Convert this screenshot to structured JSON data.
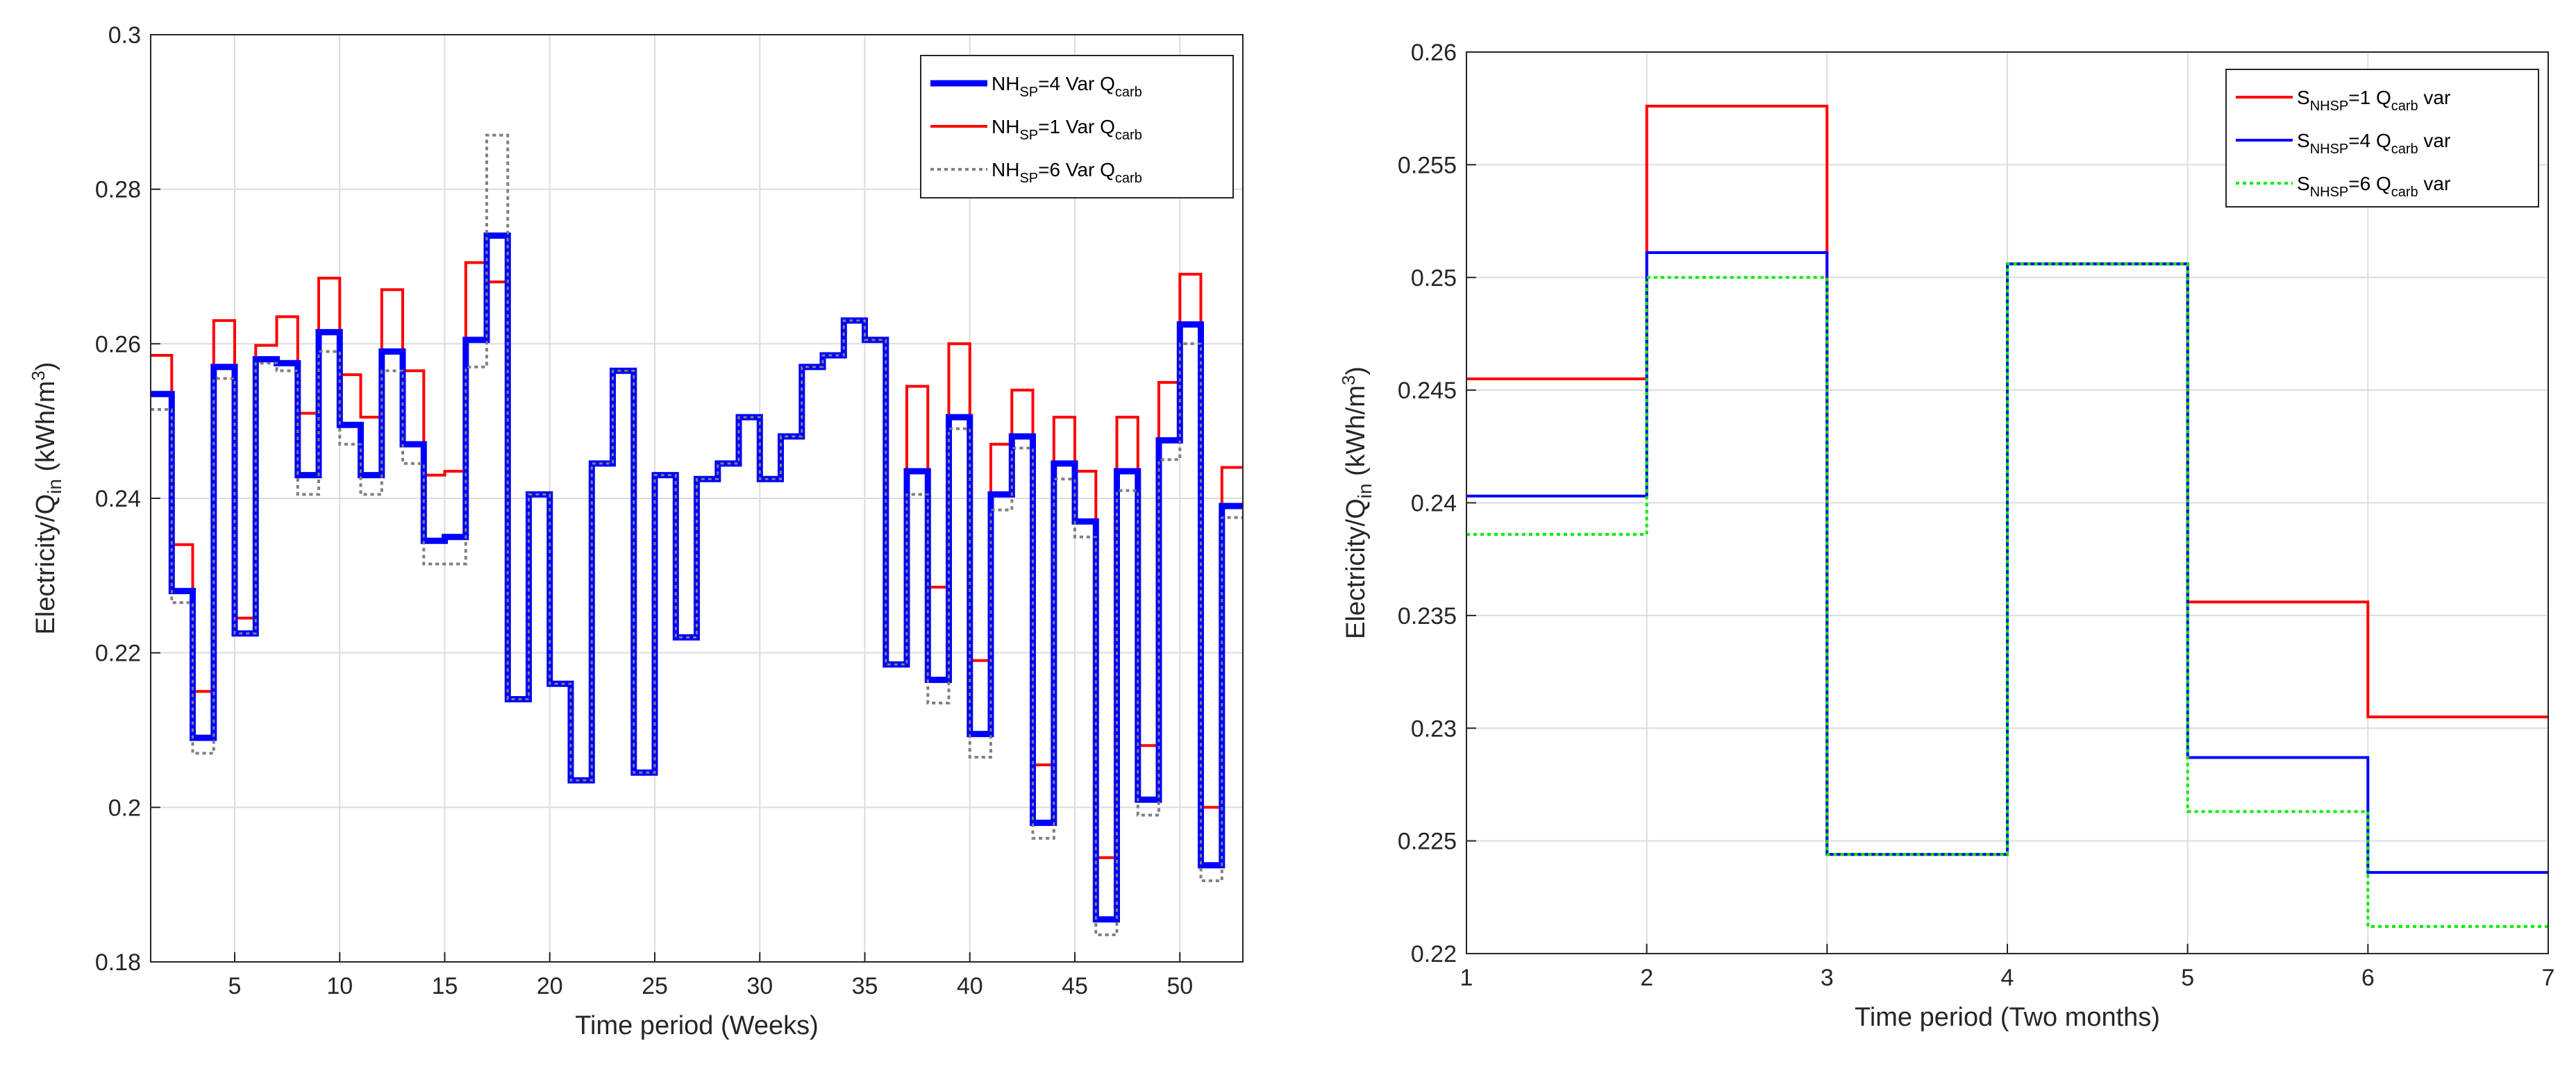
{
  "chart_data": [
    {
      "type": "line",
      "step": true,
      "title": "",
      "xlabel": "Time period (Weeks)",
      "ylabel_parts": [
        "Electricity/Q",
        "in",
        " (kWh/m",
        "3",
        ")"
      ],
      "xlim": [
        1,
        53
      ],
      "ylim": [
        0.18,
        0.3
      ],
      "xticks": [
        5,
        10,
        15,
        20,
        25,
        30,
        35,
        40,
        45,
        50
      ],
      "yticks": [
        0.18,
        0.2,
        0.22,
        0.24,
        0.26,
        0.28,
        0.3
      ],
      "ytick_labels": [
        "0.18",
        "0.2",
        "0.22",
        "0.24",
        "0.26",
        "0.28",
        "0.3"
      ],
      "grid": true,
      "legend_position": "top-right",
      "series": [
        {
          "name": "NH_SP=4 Var Q_carb",
          "label_parts": [
            "NH",
            "SP",
            "=4 Var Q",
            "carb"
          ],
          "color": "#0000ff",
          "style": "solid-thick",
          "values": [
            0.2535,
            0.228,
            0.209,
            0.257,
            0.2225,
            0.258,
            0.2575,
            0.243,
            0.2615,
            0.2495,
            0.243,
            0.259,
            0.247,
            0.2345,
            0.235,
            0.2605,
            0.274,
            0.214,
            0.2405,
            0.216,
            0.2035,
            0.2445,
            0.2565,
            0.2045,
            0.243,
            0.222,
            0.2425,
            0.2445,
            0.2505,
            0.2425,
            0.248,
            0.257,
            0.2585,
            0.263,
            0.2605,
            0.2185,
            0.2435,
            0.2165,
            0.2505,
            0.2095,
            0.2405,
            0.248,
            0.198,
            0.2445,
            0.237,
            0.1855,
            0.2435,
            0.201,
            0.2475,
            0.2625,
            0.1925,
            0.239
          ]
        },
        {
          "name": "NH_SP=1 Var Q_carb",
          "label_parts": [
            "NH",
            "SP",
            "=1 Var Q",
            "carb"
          ],
          "color": "#ff0000",
          "style": "solid",
          "values": [
            0.2585,
            0.234,
            0.215,
            0.263,
            0.2245,
            0.2598,
            0.2635,
            0.251,
            0.2685,
            0.256,
            0.2505,
            0.267,
            0.2565,
            0.243,
            0.2435,
            0.2705,
            0.268,
            0.214,
            0.2405,
            0.216,
            0.2035,
            0.2445,
            0.2565,
            0.2045,
            0.243,
            0.222,
            0.2425,
            0.2445,
            0.2505,
            0.2425,
            0.248,
            0.257,
            0.2585,
            0.263,
            0.2605,
            0.2185,
            0.2545,
            0.2285,
            0.26,
            0.219,
            0.247,
            0.254,
            0.2055,
            0.2505,
            0.2435,
            0.1935,
            0.2505,
            0.208,
            0.255,
            0.269,
            0.2,
            0.244
          ]
        },
        {
          "name": "NH_SP=6 Var Q_carb",
          "label_parts": [
            "NH",
            "SP",
            "=6 Var Q",
            "carb"
          ],
          "color": "#808080",
          "style": "dotted",
          "values": [
            0.2515,
            0.2265,
            0.207,
            0.2555,
            0.2225,
            0.2575,
            0.2565,
            0.2405,
            0.259,
            0.247,
            0.2405,
            0.2565,
            0.2445,
            0.2315,
            0.2315,
            0.257,
            0.287,
            0.214,
            0.2405,
            0.216,
            0.2035,
            0.2445,
            0.2565,
            0.2045,
            0.243,
            0.222,
            0.2425,
            0.2445,
            0.2505,
            0.2425,
            0.248,
            0.257,
            0.2585,
            0.263,
            0.2605,
            0.2185,
            0.2405,
            0.2135,
            0.249,
            0.2065,
            0.2385,
            0.2465,
            0.196,
            0.2425,
            0.235,
            0.1835,
            0.241,
            0.199,
            0.245,
            0.26,
            0.1905,
            0.2375
          ]
        }
      ]
    },
    {
      "type": "line",
      "step": true,
      "title": "",
      "xlabel": "Time period (Two months)",
      "ylabel_parts": [
        "Electricity/Q",
        "in",
        " (kWh/m",
        "3",
        ")"
      ],
      "xlim": [
        1,
        7
      ],
      "ylim": [
        0.22,
        0.26
      ],
      "xticks": [
        1,
        2,
        3,
        4,
        5,
        6,
        7
      ],
      "yticks": [
        0.22,
        0.225,
        0.23,
        0.235,
        0.24,
        0.245,
        0.25,
        0.255,
        0.26
      ],
      "ytick_labels": [
        "0.22",
        "0.225",
        "0.23",
        "0.235",
        "0.24",
        "0.245",
        "0.25",
        "0.255",
        "0.26"
      ],
      "grid": true,
      "legend_position": "top-right",
      "series": [
        {
          "name": "S_NHSP=1 Q_carb var",
          "label_parts": [
            "S",
            "NHSP",
            "=1 Q",
            "carb",
            " var"
          ],
          "color": "#ff0000",
          "style": "solid",
          "values": [
            0.2455,
            0.2576,
            0.2244,
            0.2506,
            0.2356,
            0.2305
          ]
        },
        {
          "name": "S_NHSP=4 Q_carb var",
          "label_parts": [
            "S",
            "NHSP",
            "=4 Q",
            "carb",
            " var"
          ],
          "color": "#0000ff",
          "style": "solid",
          "values": [
            0.2403,
            0.2511,
            0.2244,
            0.2506,
            0.2287,
            0.2236
          ]
        },
        {
          "name": "S_NHSP=6 Q_carb var",
          "label_parts": [
            "S",
            "NHSP",
            "=6 Q",
            "carb",
            " var"
          ],
          "color": "#00ee00",
          "style": "dotted",
          "values": [
            0.2386,
            0.25,
            0.2244,
            0.2506,
            0.2263,
            0.2212
          ]
        }
      ]
    }
  ]
}
